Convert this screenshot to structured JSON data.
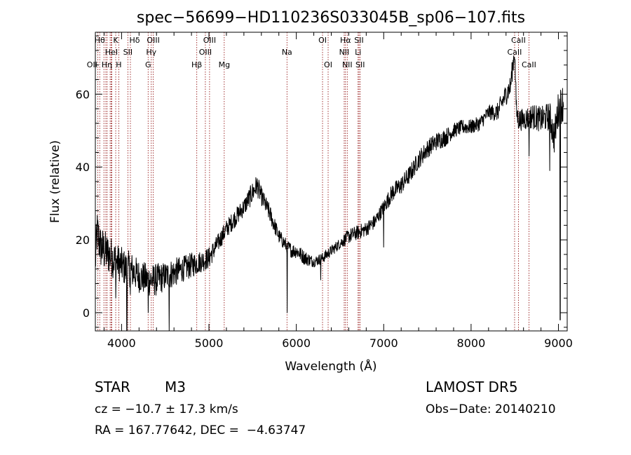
{
  "chart_data": {
    "type": "line",
    "title": "spec−56699−HD110236S033045B_sp06−107.fits",
    "xlabel": "Wavelength (Å)",
    "ylabel": "Flux (relative)",
    "xlim": [
      3700,
      9100
    ],
    "ylim": [
      -5,
      77
    ],
    "x_ticks": [
      4000,
      5000,
      6000,
      7000,
      8000,
      9000
    ],
    "y_ticks": [
      0,
      20,
      40,
      60
    ],
    "line_color": "#000000",
    "marker_color": "#8b0000",
    "spectrum_anchors": {
      "x": [
        3700,
        3720,
        3760,
        3800,
        3850,
        3900,
        3950,
        4000,
        4050,
        4100,
        4200,
        4300,
        4400,
        4500,
        4600,
        4700,
        4800,
        4900,
        5000,
        5100,
        5200,
        5300,
        5400,
        5500,
        5550,
        5600,
        5700,
        5800,
        5900,
        5950,
        6000,
        6100,
        6200,
        6300,
        6400,
        6500,
        6600,
        6700,
        6800,
        6900,
        7000,
        7100,
        7200,
        7300,
        7400,
        7500,
        7600,
        7700,
        7800,
        7900,
        8000,
        8100,
        8200,
        8300,
        8400,
        8450,
        8498,
        8520,
        8542,
        8600,
        8700,
        8800,
        8900,
        8950,
        9000,
        9060
      ],
      "y": [
        14,
        22,
        18,
        17,
        16,
        15,
        14,
        13,
        12,
        12,
        10,
        9,
        9,
        10,
        11,
        12,
        13,
        14,
        15,
        19,
        23,
        26,
        29,
        33,
        35,
        32,
        27,
        21,
        18,
        17,
        17,
        15,
        14,
        15,
        17,
        19,
        21,
        22,
        23,
        25,
        29,
        33,
        35,
        38,
        42,
        45,
        47,
        48,
        50,
        51,
        51,
        52,
        55,
        55,
        60,
        62,
        72,
        55,
        53,
        53,
        54,
        53,
        54,
        48,
        56,
        58
      ]
    },
    "spectrum_noise_amplitude": [
      6.5,
      6.5,
      6.0,
      6.0,
      5.5,
      5.5,
      5.0,
      5.0,
      5.0,
      5.0,
      4.5,
      4.5,
      4.5,
      4.0,
      4.0,
      3.5,
      3.5,
      3.0,
      3.0,
      2.5,
      2.5,
      2.5,
      2.5,
      3.0,
      3.0,
      2.5,
      2.5,
      2.0,
      2.0,
      2.0,
      2.0,
      2.0,
      1.5,
      1.5,
      1.5,
      1.5,
      2.0,
      2.0,
      2.0,
      2.0,
      2.0,
      2.5,
      2.5,
      2.5,
      2.5,
      2.5,
      2.5,
      2.5,
      2.0,
      2.0,
      2.0,
      2.0,
      2.0,
      2.5,
      3.0,
      3.0,
      3.0,
      3.0,
      3.0,
      3.0,
      3.5,
      3.5,
      4.0,
      4.5,
      5.0,
      5.5
    ],
    "spectrum_dips": [
      {
        "x": 3933,
        "y": 4
      },
      {
        "x": 4060,
        "y": -5
      },
      {
        "x": 4101,
        "y": 5
      },
      {
        "x": 4306,
        "y": 0
      },
      {
        "x": 4545,
        "y": -5
      },
      {
        "x": 5895,
        "y": 0
      },
      {
        "x": 6280,
        "y": 9
      },
      {
        "x": 7000,
        "y": 18
      },
      {
        "x": 8662,
        "y": 43
      },
      {
        "x": 8900,
        "y": 39
      },
      {
        "x": 9020,
        "y": -2
      }
    ],
    "spectral_lines": [
      {
        "x": 3727,
        "label": "OII",
        "row": 3,
        "dx": -8
      },
      {
        "x": 3750,
        "label": "Hθ",
        "row": 1,
        "dx": 0
      },
      {
        "x": 3798,
        "label": "",
        "row": 0,
        "dx": 0
      },
      {
        "x": 3820,
        "label": "HeI",
        "row": 2,
        "dx": 8
      },
      {
        "x": 3835,
        "label": "",
        "row": 0,
        "dx": 0
      },
      {
        "x": 3869,
        "label": "",
        "row": 0,
        "dx": 0
      },
      {
        "x": 3889,
        "label": "",
        "row": 0,
        "dx": 0
      },
      {
        "x": 3933,
        "label": "K",
        "row": 1,
        "dx": 0
      },
      {
        "x": 3968,
        "label": "H",
        "row": 3,
        "dx": 0
      },
      {
        "x": 4072,
        "label": "SII",
        "row": 2,
        "dx": 0
      },
      {
        "x": 4101,
        "label": "Hδ",
        "row": 1,
        "dx": 6
      },
      {
        "x": 3880,
        "label": "Hη",
        "row": 3,
        "dx": -6
      },
      {
        "x": 4304,
        "label": "G",
        "row": 3,
        "dx": 0
      },
      {
        "x": 4340,
        "label": "Hγ",
        "row": 2,
        "dx": 0
      },
      {
        "x": 4363,
        "label": "OIII",
        "row": 1,
        "dx": 0
      },
      {
        "x": 4861,
        "label": "Hβ",
        "row": 3,
        "dx": 0
      },
      {
        "x": 4959,
        "label": "OIII",
        "row": 2,
        "dx": 0
      },
      {
        "x": 5007,
        "label": "OIII",
        "row": 1,
        "dx": 0
      },
      {
        "x": 5175,
        "label": "Mg",
        "row": 3,
        "dx": 0
      },
      {
        "x": 5893,
        "label": "Na",
        "row": 2,
        "dx": 0
      },
      {
        "x": 6300,
        "label": "OI",
        "row": 1,
        "dx": 0
      },
      {
        "x": 6364,
        "label": "OI",
        "row": 3,
        "dx": 0
      },
      {
        "x": 6548,
        "label": "NII",
        "row": 2,
        "dx": 0
      },
      {
        "x": 6563,
        "label": "Hα",
        "row": 1,
        "dx": 0
      },
      {
        "x": 6583,
        "label": "NII",
        "row": 3,
        "dx": 0
      },
      {
        "x": 6707,
        "label": "Li",
        "row": 2,
        "dx": 0
      },
      {
        "x": 6717,
        "label": "SII",
        "row": 1,
        "dx": 0
      },
      {
        "x": 6731,
        "label": "SII",
        "row": 3,
        "dx": 0
      },
      {
        "x": 8498,
        "label": "CaII",
        "row": 2,
        "dx": 0
      },
      {
        "x": 8542,
        "label": "CaII",
        "row": 1,
        "dx": 0
      },
      {
        "x": 8662,
        "label": "CaII",
        "row": 3,
        "dx": 0
      }
    ]
  },
  "info": {
    "class_label": "STAR",
    "subclass_label": "M3",
    "cz_label": "cz = −10.7 ± 17.3 km/s",
    "coords_label": "RA = 167.77642, DEC =  −4.63747",
    "survey_label": "LAMOST DR5",
    "obs_date_label": "Obs−Date: 20140210"
  }
}
